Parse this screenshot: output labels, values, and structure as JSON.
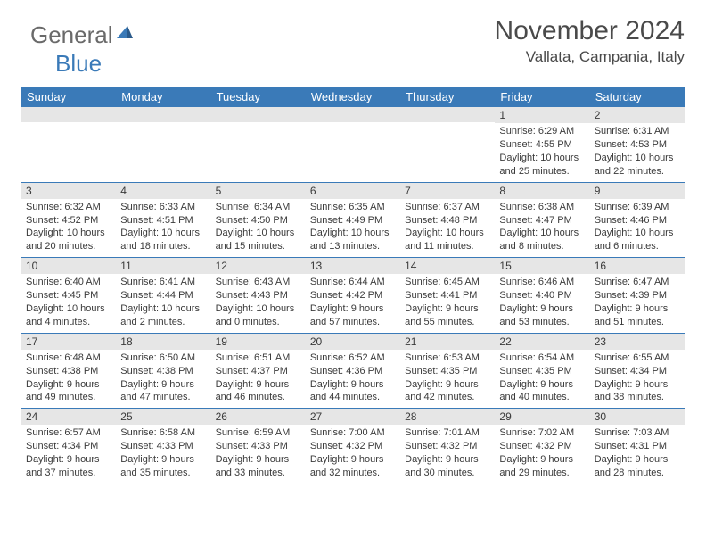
{
  "logo": {
    "text1": "General",
    "text2": "Blue"
  },
  "title": "November 2024",
  "location": "Vallata, Campania, Italy",
  "colors": {
    "header_bg": "#3a7ab8",
    "header_text": "#ffffff",
    "daynum_bg": "#e6e6e6",
    "border": "#3a7ab8",
    "body_text": "#3a3a3a",
    "title_text": "#4a4a4a",
    "logo_gray": "#6a6a6a",
    "logo_blue": "#3a7ab8"
  },
  "day_names": [
    "Sunday",
    "Monday",
    "Tuesday",
    "Wednesday",
    "Thursday",
    "Friday",
    "Saturday"
  ],
  "weeks": [
    [
      null,
      null,
      null,
      null,
      null,
      {
        "n": "1",
        "sr": "6:29 AM",
        "ss": "4:55 PM",
        "dl": "10 hours and 25 minutes."
      },
      {
        "n": "2",
        "sr": "6:31 AM",
        "ss": "4:53 PM",
        "dl": "10 hours and 22 minutes."
      }
    ],
    [
      {
        "n": "3",
        "sr": "6:32 AM",
        "ss": "4:52 PM",
        "dl": "10 hours and 20 minutes."
      },
      {
        "n": "4",
        "sr": "6:33 AM",
        "ss": "4:51 PM",
        "dl": "10 hours and 18 minutes."
      },
      {
        "n": "5",
        "sr": "6:34 AM",
        "ss": "4:50 PM",
        "dl": "10 hours and 15 minutes."
      },
      {
        "n": "6",
        "sr": "6:35 AM",
        "ss": "4:49 PM",
        "dl": "10 hours and 13 minutes."
      },
      {
        "n": "7",
        "sr": "6:37 AM",
        "ss": "4:48 PM",
        "dl": "10 hours and 11 minutes."
      },
      {
        "n": "8",
        "sr": "6:38 AM",
        "ss": "4:47 PM",
        "dl": "10 hours and 8 minutes."
      },
      {
        "n": "9",
        "sr": "6:39 AM",
        "ss": "4:46 PM",
        "dl": "10 hours and 6 minutes."
      }
    ],
    [
      {
        "n": "10",
        "sr": "6:40 AM",
        "ss": "4:45 PM",
        "dl": "10 hours and 4 minutes."
      },
      {
        "n": "11",
        "sr": "6:41 AM",
        "ss": "4:44 PM",
        "dl": "10 hours and 2 minutes."
      },
      {
        "n": "12",
        "sr": "6:43 AM",
        "ss": "4:43 PM",
        "dl": "10 hours and 0 minutes."
      },
      {
        "n": "13",
        "sr": "6:44 AM",
        "ss": "4:42 PM",
        "dl": "9 hours and 57 minutes."
      },
      {
        "n": "14",
        "sr": "6:45 AM",
        "ss": "4:41 PM",
        "dl": "9 hours and 55 minutes."
      },
      {
        "n": "15",
        "sr": "6:46 AM",
        "ss": "4:40 PM",
        "dl": "9 hours and 53 minutes."
      },
      {
        "n": "16",
        "sr": "6:47 AM",
        "ss": "4:39 PM",
        "dl": "9 hours and 51 minutes."
      }
    ],
    [
      {
        "n": "17",
        "sr": "6:48 AM",
        "ss": "4:38 PM",
        "dl": "9 hours and 49 minutes."
      },
      {
        "n": "18",
        "sr": "6:50 AM",
        "ss": "4:38 PM",
        "dl": "9 hours and 47 minutes."
      },
      {
        "n": "19",
        "sr": "6:51 AM",
        "ss": "4:37 PM",
        "dl": "9 hours and 46 minutes."
      },
      {
        "n": "20",
        "sr": "6:52 AM",
        "ss": "4:36 PM",
        "dl": "9 hours and 44 minutes."
      },
      {
        "n": "21",
        "sr": "6:53 AM",
        "ss": "4:35 PM",
        "dl": "9 hours and 42 minutes."
      },
      {
        "n": "22",
        "sr": "6:54 AM",
        "ss": "4:35 PM",
        "dl": "9 hours and 40 minutes."
      },
      {
        "n": "23",
        "sr": "6:55 AM",
        "ss": "4:34 PM",
        "dl": "9 hours and 38 minutes."
      }
    ],
    [
      {
        "n": "24",
        "sr": "6:57 AM",
        "ss": "4:34 PM",
        "dl": "9 hours and 37 minutes."
      },
      {
        "n": "25",
        "sr": "6:58 AM",
        "ss": "4:33 PM",
        "dl": "9 hours and 35 minutes."
      },
      {
        "n": "26",
        "sr": "6:59 AM",
        "ss": "4:33 PM",
        "dl": "9 hours and 33 minutes."
      },
      {
        "n": "27",
        "sr": "7:00 AM",
        "ss": "4:32 PM",
        "dl": "9 hours and 32 minutes."
      },
      {
        "n": "28",
        "sr": "7:01 AM",
        "ss": "4:32 PM",
        "dl": "9 hours and 30 minutes."
      },
      {
        "n": "29",
        "sr": "7:02 AM",
        "ss": "4:32 PM",
        "dl": "9 hours and 29 minutes."
      },
      {
        "n": "30",
        "sr": "7:03 AM",
        "ss": "4:31 PM",
        "dl": "9 hours and 28 minutes."
      }
    ]
  ],
  "labels": {
    "sunrise": "Sunrise:",
    "sunset": "Sunset:",
    "daylight": "Daylight:"
  }
}
